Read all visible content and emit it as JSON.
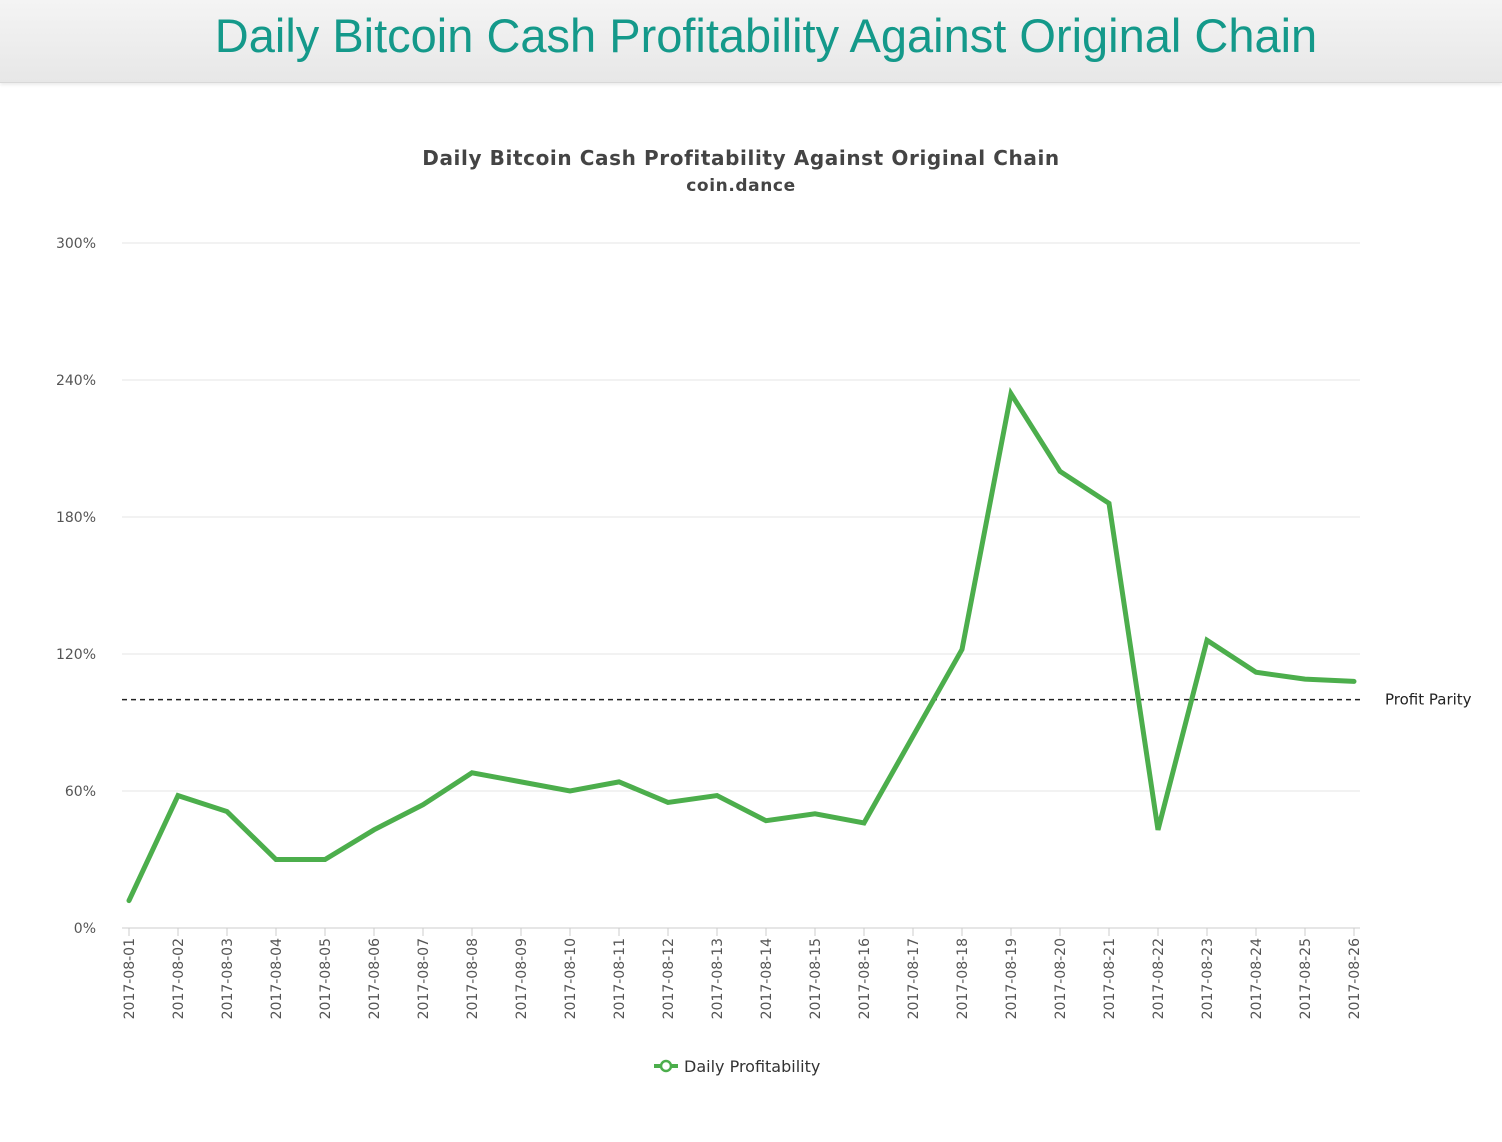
{
  "page": {
    "title": "Daily Bitcoin Cash Profitability Against Original Chain"
  },
  "chart_data": {
    "type": "line",
    "title": "Daily Bitcoin Cash Profitability Against Original Chain",
    "subtitle": "coin.dance",
    "xlabel": "",
    "ylabel": "",
    "ylim": [
      0,
      300
    ],
    "yticks": [
      0,
      60,
      120,
      180,
      240,
      300
    ],
    "ytick_suffix": "%",
    "categories": [
      "2017-08-01",
      "2017-08-02",
      "2017-08-03",
      "2017-08-04",
      "2017-08-05",
      "2017-08-06",
      "2017-08-07",
      "2017-08-08",
      "2017-08-09",
      "2017-08-10",
      "2017-08-11",
      "2017-08-12",
      "2017-08-13",
      "2017-08-14",
      "2017-08-15",
      "2017-08-16",
      "2017-08-17",
      "2017-08-18",
      "2017-08-19",
      "2017-08-20",
      "2017-08-21",
      "2017-08-22",
      "2017-08-23",
      "2017-08-24",
      "2017-08-25",
      "2017-08-26"
    ],
    "series": [
      {
        "name": "Daily Profitability",
        "color": "#4cae4c",
        "values": [
          12,
          58,
          51,
          30,
          30,
          43,
          54,
          68,
          64,
          60,
          64,
          55,
          58,
          47,
          50,
          46,
          84,
          122,
          234,
          200,
          186,
          43,
          126,
          112,
          109,
          108
        ]
      }
    ],
    "reference_line": {
      "label": "Profit Parity",
      "value": 100,
      "style": "dashed",
      "color": "#222222"
    },
    "grid": true,
    "legend": "bottom-center"
  }
}
